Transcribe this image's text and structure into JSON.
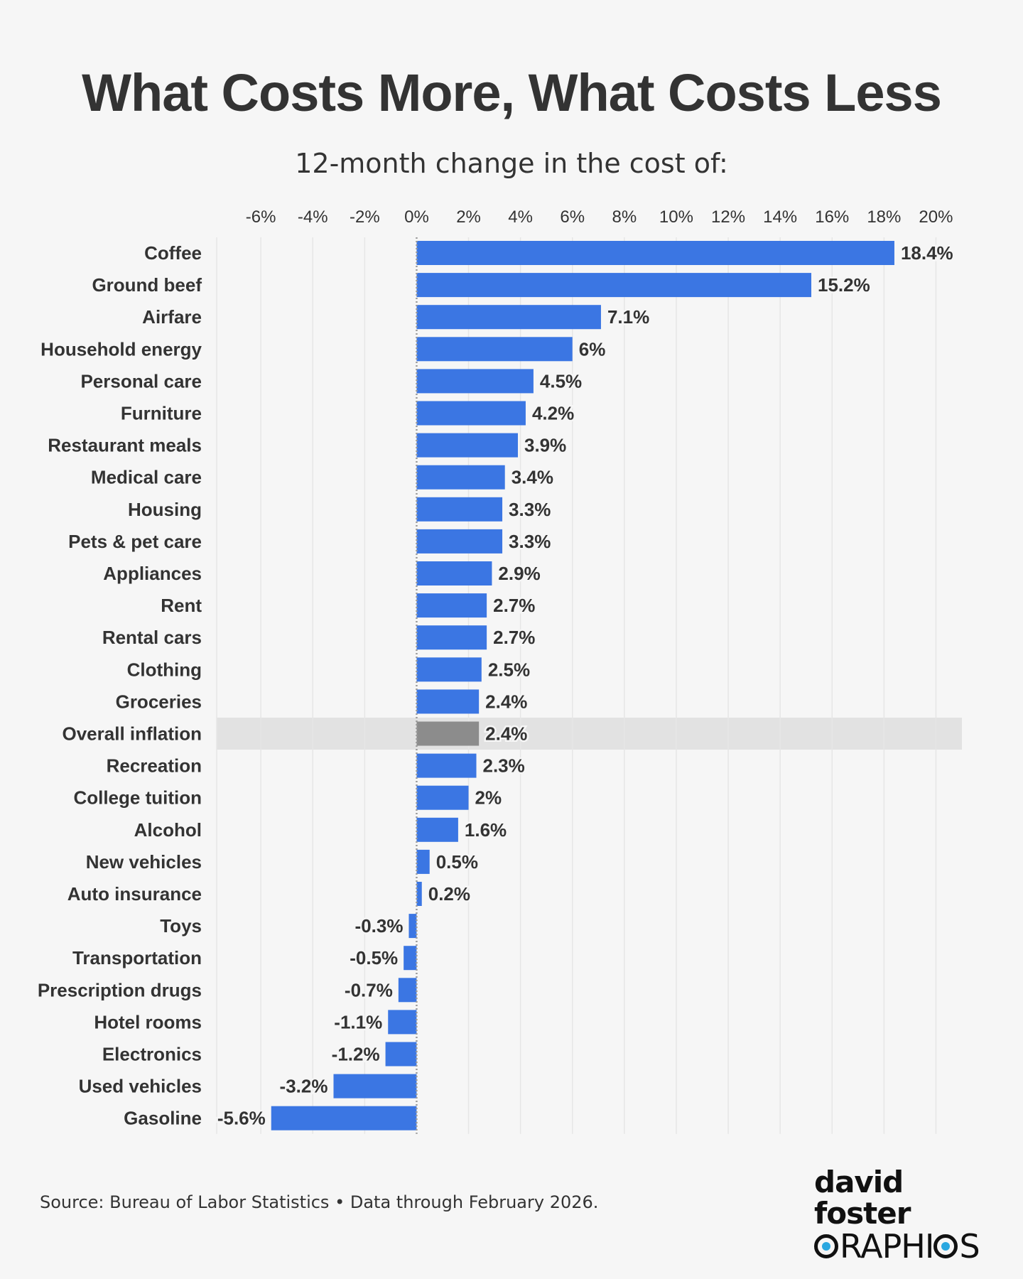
{
  "header": {
    "title": "What Costs More, What Costs Less",
    "subtitle": "12-month change in the cost of:"
  },
  "footer": {
    "source": "Source: Bureau of Labor Statistics • Data through February 2026.",
    "logo_line1": "david foster",
    "logo_line2_prefix": "",
    "logo_line2_main": "RAPHI",
    "logo_line2_suffix": "S",
    "logo_text": "david foster GRAPHICS"
  },
  "colors": {
    "bar": "#3b76e3",
    "highlight_bar": "#8c8c8c",
    "highlight_band": "#e2e2e2",
    "grid": "#e6e6e6",
    "zero_line": "#9a9a9a",
    "text": "#333333",
    "background": "#f6f6f6"
  },
  "chart_data": {
    "type": "bar",
    "orientation": "horizontal",
    "title": "What Costs More, What Costs Less",
    "subtitle": "12-month change in the cost of:",
    "xlabel": "",
    "ylabel": "",
    "unit": "%",
    "xlim": [
      -7.7,
      21
    ],
    "ticks": [
      -6,
      -4,
      -2,
      0,
      2,
      4,
      6,
      8,
      10,
      12,
      14,
      16,
      18,
      20
    ],
    "tick_labels": [
      "-6%",
      "-4%",
      "-2%",
      "0%",
      "2%",
      "4%",
      "6%",
      "8%",
      "10%",
      "12%",
      "14%",
      "16%",
      "18%",
      "20%"
    ],
    "axis_position": "top",
    "grid": true,
    "highlight": "Overall inflation",
    "categories": [
      "Coffee",
      "Ground beef",
      "Airfare",
      "Household energy",
      "Personal care",
      "Furniture",
      "Restaurant meals",
      "Medical care",
      "Housing",
      "Pets & pet care",
      "Appliances",
      "Rent",
      "Rental cars",
      "Clothing",
      "Groceries",
      "Overall inflation",
      "Recreation",
      "College tuition",
      "Alcohol",
      "New vehicles",
      "Auto insurance",
      "Toys",
      "Transportation",
      "Prescription drugs",
      "Hotel rooms",
      "Electronics",
      "Used vehicles",
      "Gasoline"
    ],
    "values": [
      18.4,
      15.2,
      7.1,
      6,
      4.5,
      4.2,
      3.9,
      3.4,
      3.3,
      3.3,
      2.9,
      2.7,
      2.7,
      2.5,
      2.4,
      2.4,
      2.3,
      2,
      1.6,
      0.5,
      0.2,
      -0.3,
      -0.5,
      -0.7,
      -1.1,
      -1.2,
      -3.2,
      -5.6
    ],
    "value_labels": [
      "18.4%",
      "15.2%",
      "7.1%",
      "6%",
      "4.5%",
      "4.2%",
      "3.9%",
      "3.4%",
      "3.3%",
      "3.3%",
      "2.9%",
      "2.7%",
      "2.7%",
      "2.5%",
      "2.4%",
      "2.4%",
      "2.3%",
      "2%",
      "1.6%",
      "0.5%",
      "0.2%",
      "-0.3%",
      "-0.5%",
      "-0.7%",
      "-1.1%",
      "-1.2%",
      "-3.2%",
      "-5.6%"
    ]
  }
}
